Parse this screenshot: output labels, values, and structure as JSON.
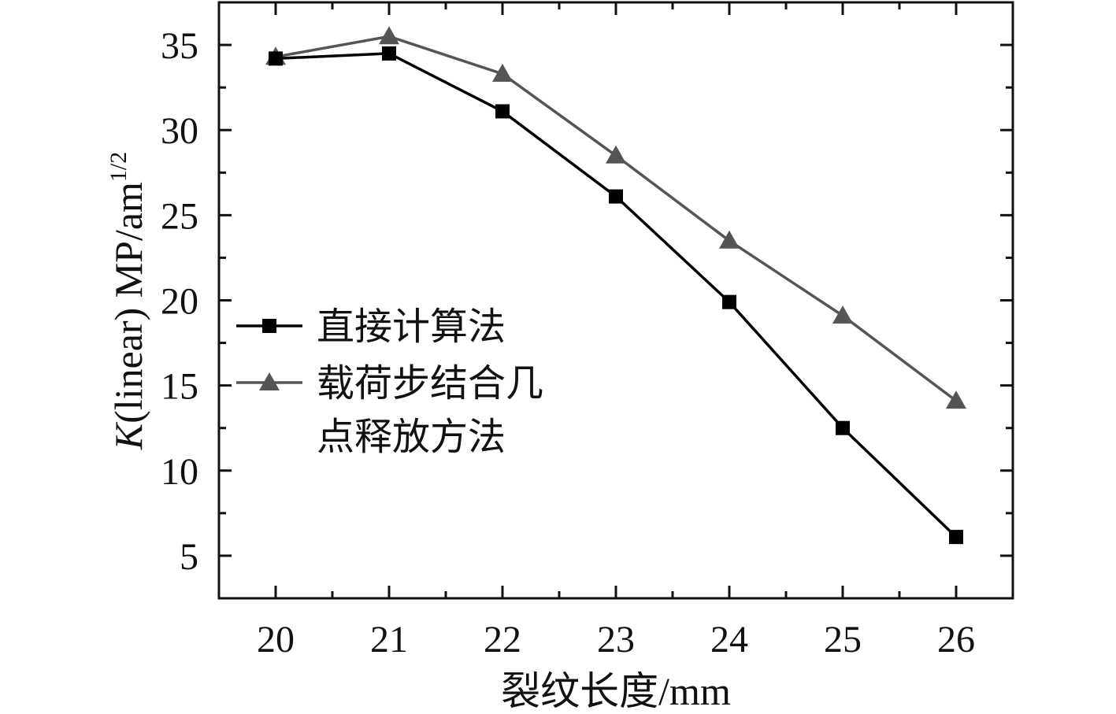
{
  "chart_data": {
    "type": "line",
    "xlabel": "裂纹长度/mm",
    "ylabel": {
      "italic": "K",
      "rest": "(linear) MP/am",
      "sup": "1/2"
    },
    "x": [
      20,
      21,
      22,
      23,
      24,
      25,
      26
    ],
    "xlim": [
      19.5,
      26.5
    ],
    "ylim": [
      2.5,
      37.5
    ],
    "xticks": [
      20,
      21,
      22,
      23,
      24,
      25,
      26
    ],
    "yticks": [
      5,
      10,
      15,
      20,
      25,
      30,
      35
    ],
    "grid": false,
    "legend_position": "left-middle",
    "series": [
      {
        "name": "直接计算法",
        "legend_lines": [
          "直接计算法"
        ],
        "marker": "square",
        "color": "#000000",
        "values": [
          34.2,
          34.5,
          31.1,
          26.1,
          19.9,
          12.5,
          6.1
        ]
      },
      {
        "name": "载荷步结合几点释放方法",
        "legend_lines": [
          "载荷步结合几",
          "点释放方法"
        ],
        "marker": "triangle",
        "color": "#555555",
        "values": [
          34.3,
          35.5,
          33.3,
          28.5,
          23.5,
          19.1,
          14.1
        ]
      }
    ]
  }
}
